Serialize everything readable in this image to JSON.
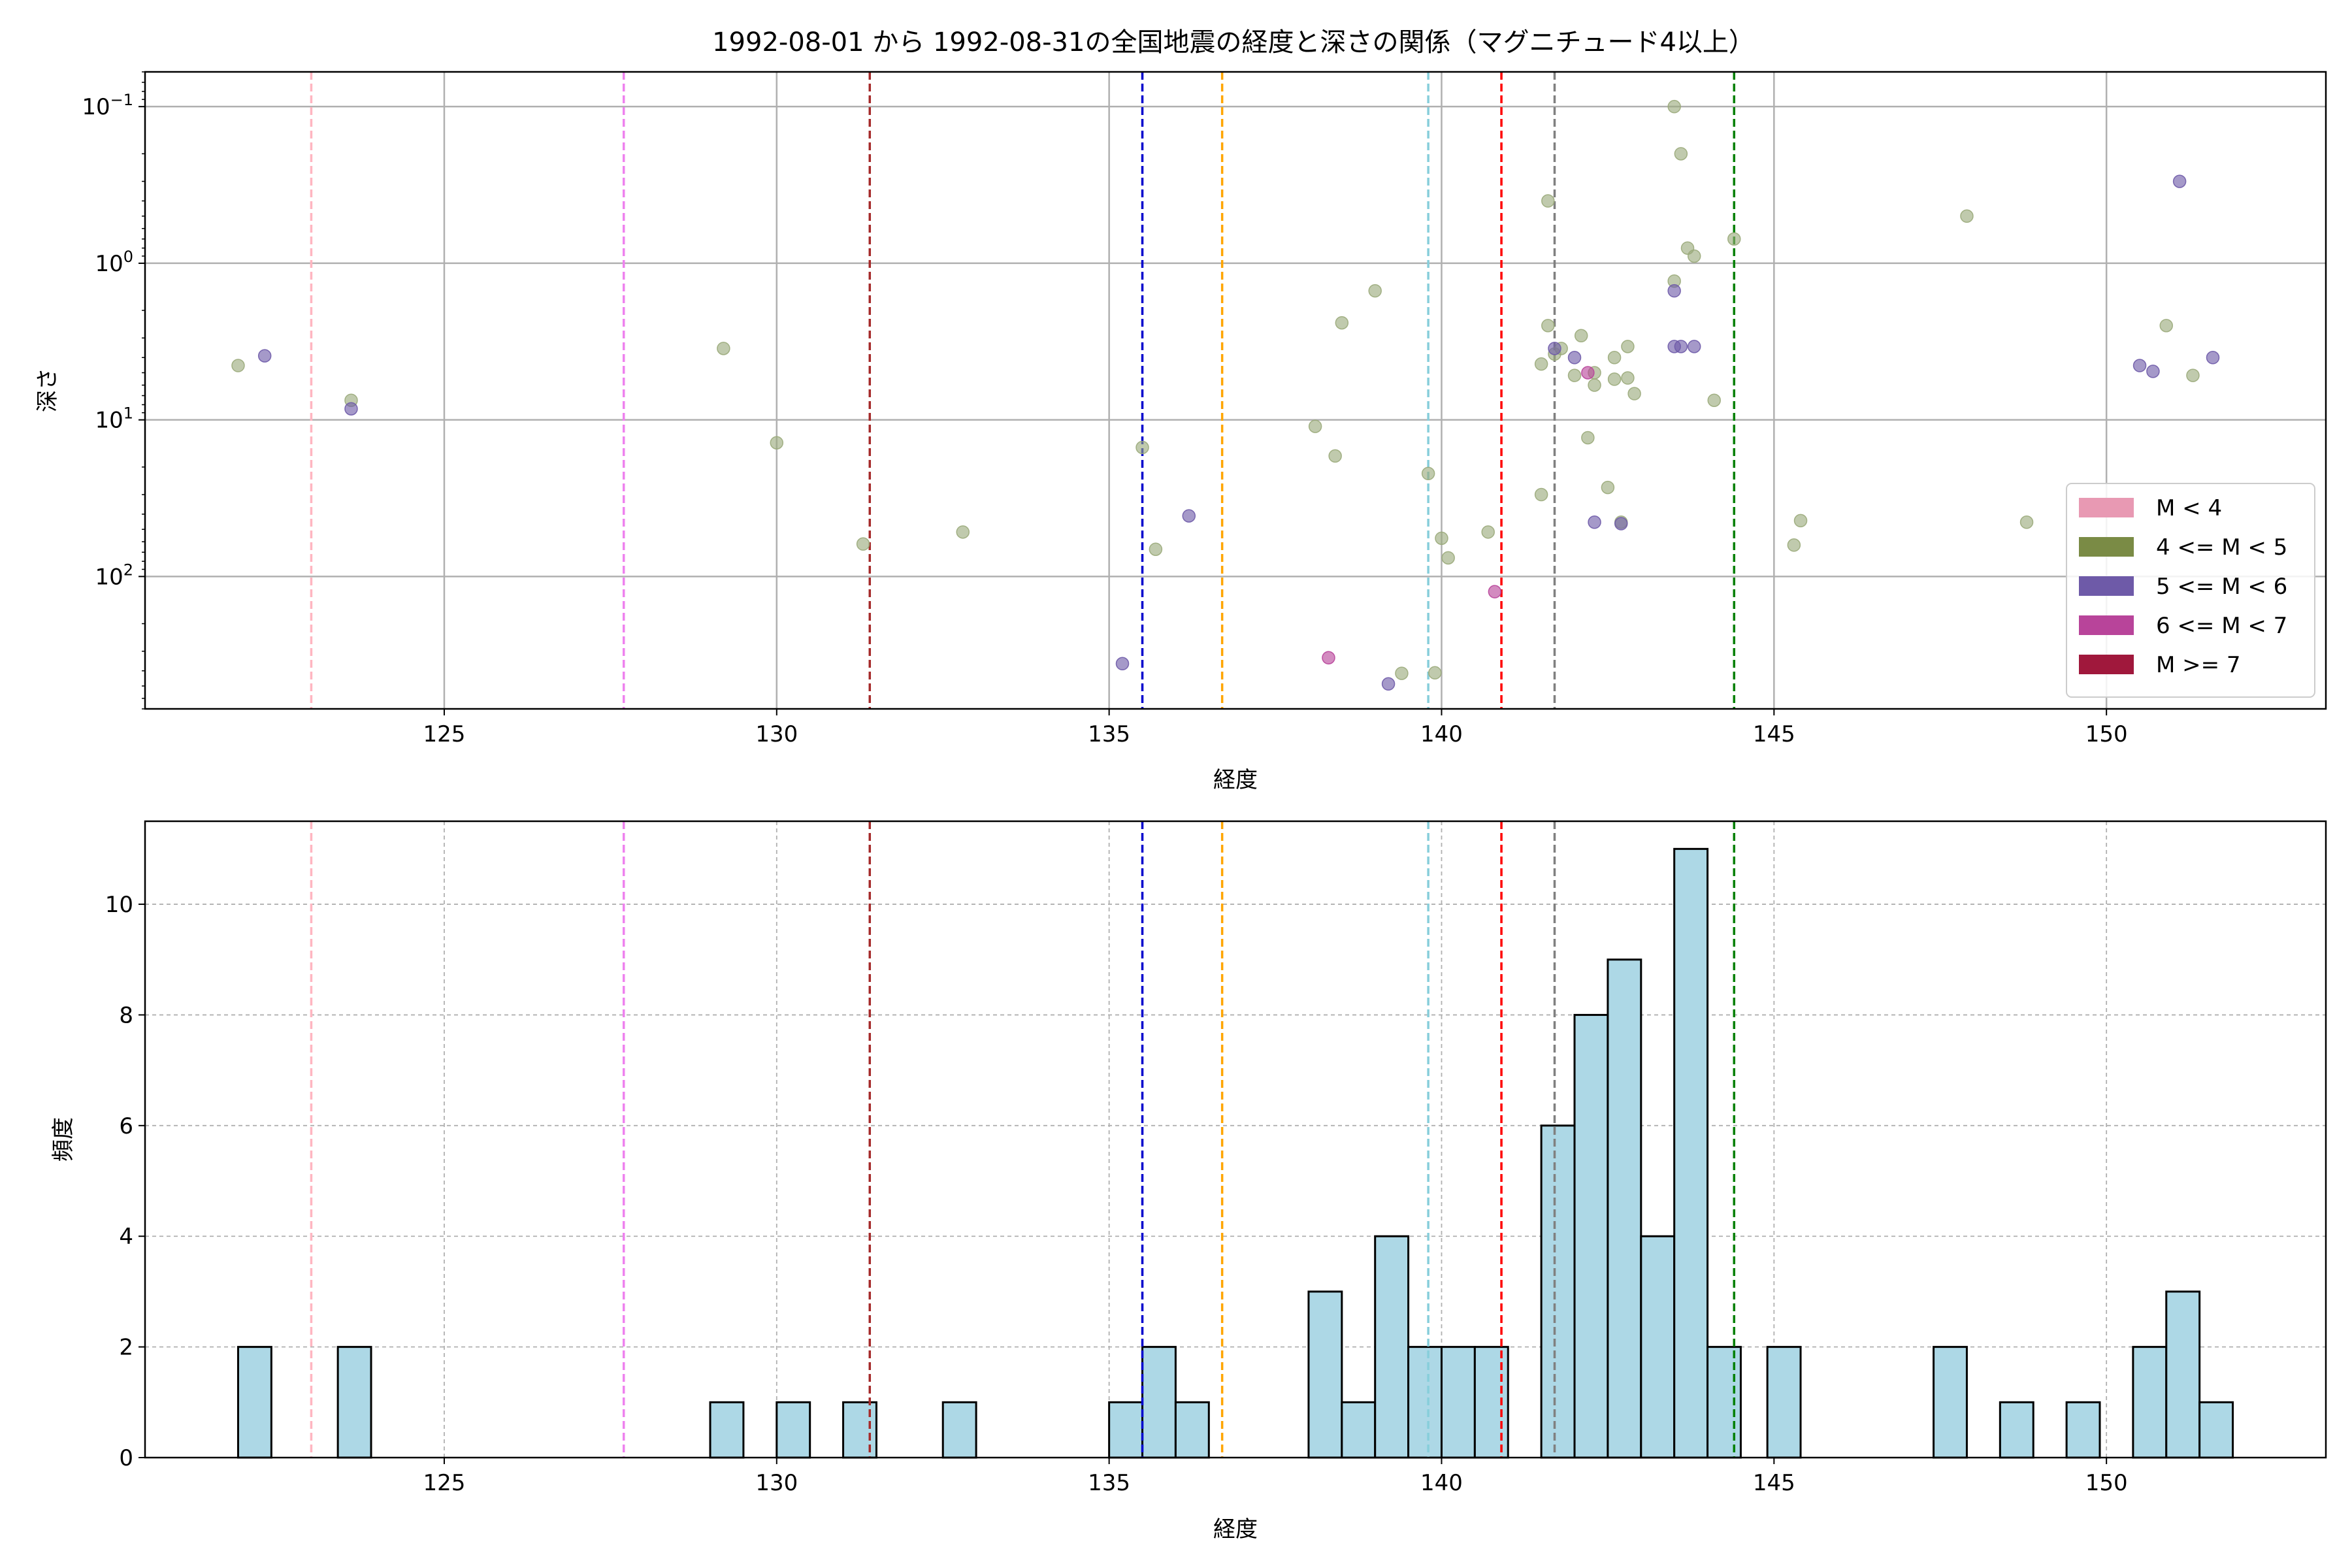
{
  "title": "1992-08-01 から 1992-08-31の全国地震の経度と深さの関係（マグニチュード4以上）",
  "colors": {
    "scatter_default": "#9aaa7a",
    "mag_lt4": "#e899b3",
    "mag_4_5": "#7a8b45",
    "mag_5_6": "#6e5aa8",
    "mag_6_7": "#b8449a",
    "mag_ge7": "#a0183c",
    "hist_fill": "#add8e6",
    "hist_edge": "#000000",
    "grid_top": "#b0b0b0",
    "grid_bottom": "#b0b0b0"
  },
  "reference_lines": [
    {
      "x": 123.0,
      "color": "#ffb6c1"
    },
    {
      "x": 127.7,
      "color": "#ee82ee"
    },
    {
      "x": 131.4,
      "color": "#a52a2a"
    },
    {
      "x": 135.5,
      "color": "#0000cd"
    },
    {
      "x": 136.7,
      "color": "#ffa500"
    },
    {
      "x": 139.8,
      "color": "#87cedb"
    },
    {
      "x": 140.9,
      "color": "#ff0000"
    },
    {
      "x": 141.7,
      "color": "#808080"
    },
    {
      "x": 144.4,
      "color": "#008000"
    }
  ],
  "chart_data": [
    {
      "type": "scatter",
      "xlabel": "経度",
      "ylabel": "深さ",
      "y_scale": "log",
      "y_inverted": true,
      "xlim": [
        120.5,
        153.3
      ],
      "ylim": [
        700,
        0.06
      ],
      "grid": true,
      "xticks": [
        {
          "v": 125,
          "label": "125"
        },
        {
          "v": 130,
          "label": "130"
        },
        {
          "v": 135,
          "label": "135"
        },
        {
          "v": 140,
          "label": "140"
        },
        {
          "v": 145,
          "label": "145"
        },
        {
          "v": 150,
          "label": "150"
        }
      ],
      "yticks": [
        {
          "v": 0.1,
          "base": "10",
          "exp": "−1"
        },
        {
          "v": 1,
          "base": "10",
          "exp": "0"
        },
        {
          "v": 10,
          "base": "10",
          "exp": "1"
        },
        {
          "v": 100,
          "base": "10",
          "exp": "2"
        }
      ],
      "legend": {
        "position": "lower-right",
        "entries": [
          {
            "label": "M < 4",
            "color": "#e899b3"
          },
          {
            "label": "4 <= M < 5",
            "color": "#7a8b45"
          },
          {
            "label": "5 <= M < 6",
            "color": "#6e5aa8"
          },
          {
            "label": "6 <= M < 7",
            "color": "#b8449a"
          },
          {
            "label": "M >= 7",
            "color": "#a0183c"
          }
        ]
      },
      "series": [
        {
          "name": "4 <= M < 5",
          "color": "#9aaa7a",
          "points": [
            [
              121.9,
              4.5
            ],
            [
              123.6,
              7.5
            ],
            [
              129.2,
              3.5
            ],
            [
              130.0,
              14
            ],
            [
              131.3,
              62
            ],
            [
              132.8,
              52
            ],
            [
              135.5,
              15
            ],
            [
              135.7,
              67
            ],
            [
              138.1,
              11
            ],
            [
              138.4,
              17
            ],
            [
              138.5,
              2.4
            ],
            [
              139.0,
              1.5
            ],
            [
              139.4,
              415
            ],
            [
              139.8,
              22
            ],
            [
              139.9,
              412
            ],
            [
              140.0,
              57
            ],
            [
              140.1,
              76
            ],
            [
              140.7,
              52
            ],
            [
              141.5,
              30
            ],
            [
              141.5,
              4.4
            ],
            [
              141.6,
              2.5
            ],
            [
              141.6,
              0.4
            ],
            [
              141.7,
              3.8
            ],
            [
              141.8,
              3.5
            ],
            [
              142.0,
              5.2
            ],
            [
              142.1,
              2.9
            ],
            [
              142.2,
              13
            ],
            [
              142.3,
              6
            ],
            [
              142.3,
              5
            ],
            [
              142.5,
              27
            ],
            [
              142.6,
              4
            ],
            [
              142.6,
              5.5
            ],
            [
              142.7,
              45
            ],
            [
              142.8,
              3.4
            ],
            [
              142.8,
              5.4
            ],
            [
              142.9,
              6.8
            ],
            [
              143.5,
              1.3
            ],
            [
              143.5,
              0.1
            ],
            [
              143.6,
              0.2
            ],
            [
              143.7,
              0.8
            ],
            [
              143.8,
              0.9
            ],
            [
              144.1,
              7.5
            ],
            [
              144.4,
              0.7
            ],
            [
              145.3,
              63
            ],
            [
              145.4,
              44
            ],
            [
              147.9,
              0.5
            ],
            [
              148.8,
              45
            ],
            [
              150.9,
              2.5
            ],
            [
              151.3,
              5.2
            ]
          ]
        },
        {
          "name": "5 <= M < 6",
          "color": "#6e5aa8",
          "points": [
            [
              122.3,
              3.9
            ],
            [
              123.6,
              8.5
            ],
            [
              135.2,
              360
            ],
            [
              136.2,
              41
            ],
            [
              139.2,
              485
            ],
            [
              141.7,
              3.5
            ],
            [
              142.0,
              4.0
            ],
            [
              142.3,
              45
            ],
            [
              142.7,
              46
            ],
            [
              143.5,
              1.5
            ],
            [
              143.5,
              3.4
            ],
            [
              143.6,
              3.4
            ],
            [
              143.8,
              3.4
            ],
            [
              150.5,
              4.5
            ],
            [
              150.7,
              4.9
            ],
            [
              151.1,
              0.3
            ],
            [
              151.6,
              4.0
            ]
          ]
        },
        {
          "name": "6 <= M < 7",
          "color": "#b8449a",
          "points": [
            [
              138.3,
              330
            ],
            [
              140.8,
              125
            ],
            [
              142.2,
              5.0
            ]
          ]
        }
      ]
    },
    {
      "type": "bar",
      "subtype": "histogram",
      "xlabel": "経度",
      "ylabel": "頻度",
      "xlim": [
        120.5,
        153.3
      ],
      "ylim": [
        0,
        11.5
      ],
      "grid": true,
      "bin_width": 0.5,
      "xticks": [
        {
          "v": 125,
          "label": "125"
        },
        {
          "v": 130,
          "label": "130"
        },
        {
          "v": 135,
          "label": "135"
        },
        {
          "v": 140,
          "label": "140"
        },
        {
          "v": 145,
          "label": "145"
        },
        {
          "v": 150,
          "label": "150"
        }
      ],
      "yticks": [
        {
          "v": 0,
          "label": "0"
        },
        {
          "v": 2,
          "label": "2"
        },
        {
          "v": 4,
          "label": "4"
        },
        {
          "v": 6,
          "label": "6"
        },
        {
          "v": 8,
          "label": "8"
        },
        {
          "v": 10,
          "label": "10"
        }
      ],
      "bins": [
        [
          121.9,
          2
        ],
        [
          123.4,
          2
        ],
        [
          129.0,
          1
        ],
        [
          130.0,
          1
        ],
        [
          131.0,
          1
        ],
        [
          132.5,
          1
        ],
        [
          135.0,
          1
        ],
        [
          135.5,
          2
        ],
        [
          136.0,
          1
        ],
        [
          138.0,
          3
        ],
        [
          138.5,
          1
        ],
        [
          139.0,
          4
        ],
        [
          139.5,
          2
        ],
        [
          140.0,
          2
        ],
        [
          140.5,
          2
        ],
        [
          141.5,
          6
        ],
        [
          142.0,
          8
        ],
        [
          142.5,
          9
        ],
        [
          143.0,
          4
        ],
        [
          143.5,
          11
        ],
        [
          144.0,
          2
        ],
        [
          144.9,
          2
        ],
        [
          147.4,
          2
        ],
        [
          148.4,
          1
        ],
        [
          149.4,
          1
        ],
        [
          150.4,
          2
        ],
        [
          150.9,
          3
        ],
        [
          151.4,
          1
        ]
      ]
    }
  ]
}
